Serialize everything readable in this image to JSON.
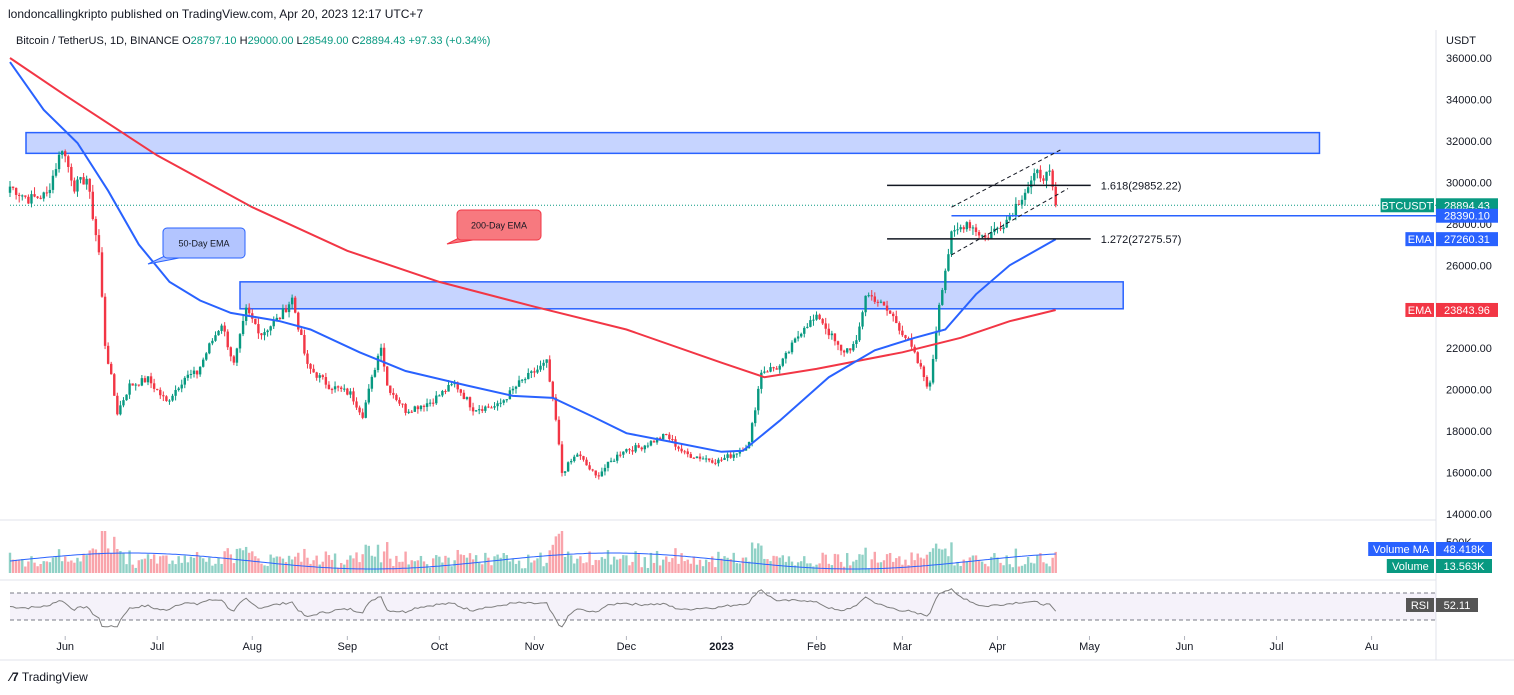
{
  "header": {
    "publisher": "londoncallingkripto published on TradingView.com, Apr 20, 2023 12:17 UTC+7"
  },
  "legend": {
    "symbol": "Bitcoin / TetherUS, 1D, BINANCE",
    "o_label": "O",
    "o": "28797.10",
    "h_label": "H",
    "h": "29000.00",
    "l_label": "L",
    "l": "28549.00",
    "c_label": "C",
    "c": "28894.43",
    "change": "+97.33 (+0.34%)"
  },
  "footer": {
    "logo": "TradingView"
  },
  "colors": {
    "up": "#089981",
    "down": "#f23645",
    "ema50": "#2962ff",
    "ema200": "#f23645",
    "zone_fill": "#b3c5ff",
    "zone_stroke": "#2962ff",
    "badge_blue": "#2962ff",
    "badge_green": "#089981",
    "rsi_line": "#7e7e7e"
  },
  "chart_data": {
    "type": "candlestick",
    "symbol": "BTCUSDT",
    "currency": "USDT",
    "y_axis": {
      "label": "USDT",
      "range": [
        13400,
        37000
      ],
      "ticks": [
        {
          "v": 14000,
          "t": "14000.00"
        },
        {
          "v": 16000,
          "t": "16000.00"
        },
        {
          "v": 18000,
          "t": "18000.00"
        },
        {
          "v": 20000,
          "t": "20000.00"
        },
        {
          "v": 22000,
          "t": "22000.00"
        },
        {
          "v": 24000,
          "t": "24000.00"
        },
        {
          "v": 26000,
          "t": "26000.00"
        },
        {
          "v": 28000,
          "t": "28000.00"
        },
        {
          "v": 30000,
          "t": "30000.00"
        },
        {
          "v": 32000,
          "t": "32000.00"
        },
        {
          "v": 34000,
          "t": "34000.00"
        },
        {
          "v": 36000,
          "t": "36000.00"
        }
      ]
    },
    "x_axis": {
      "range": [
        "2022-05-14",
        "2023-08-22"
      ],
      "ticks": [
        {
          "d": "2022-06-01",
          "t": "Jun"
        },
        {
          "d": "2022-07-01",
          "t": "Jul"
        },
        {
          "d": "2022-08-01",
          "t": "Aug"
        },
        {
          "d": "2022-09-01",
          "t": "Sep"
        },
        {
          "d": "2022-10-01",
          "t": "Oct"
        },
        {
          "d": "2022-11-01",
          "t": "Nov"
        },
        {
          "d": "2022-12-01",
          "t": "Dec"
        },
        {
          "d": "2023-01-01",
          "t": "2023"
        },
        {
          "d": "2023-02-01",
          "t": "Feb"
        },
        {
          "d": "2023-03-01",
          "t": "Mar"
        },
        {
          "d": "2023-04-01",
          "t": "Apr"
        },
        {
          "d": "2023-05-01",
          "t": "May"
        },
        {
          "d": "2023-06-01",
          "t": "Jun"
        },
        {
          "d": "2023-07-01",
          "t": "Jul"
        },
        {
          "d": "2023-08-01",
          "t": "Au"
        }
      ]
    },
    "close_path": [
      [
        "2022-05-14",
        29800
      ],
      [
        "2022-05-20",
        29200
      ],
      [
        "2022-05-26",
        29400
      ],
      [
        "2022-05-31",
        31700
      ],
      [
        "2022-06-04",
        29800
      ],
      [
        "2022-06-08",
        30200
      ],
      [
        "2022-06-12",
        26600
      ],
      [
        "2022-06-14",
        22200
      ],
      [
        "2022-06-18",
        18900
      ],
      [
        "2022-06-22",
        20200
      ],
      [
        "2022-06-28",
        20500
      ],
      [
        "2022-07-04",
        19400
      ],
      [
        "2022-07-10",
        20600
      ],
      [
        "2022-07-14",
        20800
      ],
      [
        "2022-07-18",
        22100
      ],
      [
        "2022-07-22",
        23200
      ],
      [
        "2022-07-26",
        21200
      ],
      [
        "2022-07-30",
        23800
      ],
      [
        "2022-08-04",
        22700
      ],
      [
        "2022-08-10",
        23500
      ],
      [
        "2022-08-14",
        24400
      ],
      [
        "2022-08-19",
        21100
      ],
      [
        "2022-08-26",
        20200
      ],
      [
        "2022-09-02",
        19800
      ],
      [
        "2022-09-06",
        18800
      ],
      [
        "2022-09-12",
        22200
      ],
      [
        "2022-09-14",
        20200
      ],
      [
        "2022-09-20",
        19000
      ],
      [
        "2022-09-28",
        19400
      ],
      [
        "2022-10-06",
        20300
      ],
      [
        "2022-10-12",
        19100
      ],
      [
        "2022-10-20",
        19200
      ],
      [
        "2022-10-27",
        20300
      ],
      [
        "2022-11-05",
        21300
      ],
      [
        "2022-11-08",
        18500
      ],
      [
        "2022-11-10",
        16000
      ],
      [
        "2022-11-15",
        16900
      ],
      [
        "2022-11-21",
        15800
      ],
      [
        "2022-11-30",
        17100
      ],
      [
        "2022-12-05",
        17200
      ],
      [
        "2022-12-14",
        17800
      ],
      [
        "2022-12-20",
        16900
      ],
      [
        "2022-12-31",
        16550
      ],
      [
        "2023-01-05",
        16900
      ],
      [
        "2023-01-10",
        17400
      ],
      [
        "2023-01-14",
        20900
      ],
      [
        "2023-01-20",
        21100
      ],
      [
        "2023-01-28",
        23100
      ],
      [
        "2023-02-02",
        23500
      ],
      [
        "2023-02-09",
        21800
      ],
      [
        "2023-02-14",
        22200
      ],
      [
        "2023-02-17",
        24600
      ],
      [
        "2023-02-20",
        24400
      ],
      [
        "2023-02-26",
        23500
      ],
      [
        "2023-03-03",
        22300
      ],
      [
        "2023-03-09",
        20300
      ],
      [
        "2023-03-10",
        20200
      ],
      [
        "2023-03-13",
        24200
      ],
      [
        "2023-03-17",
        27400
      ],
      [
        "2023-03-22",
        28100
      ],
      [
        "2023-03-28",
        27300
      ],
      [
        "2023-04-04",
        28200
      ],
      [
        "2023-04-10",
        29600
      ],
      [
        "2023-04-14",
        30400
      ],
      [
        "2023-04-18",
        30300
      ],
      [
        "2023-04-20",
        28894
      ]
    ],
    "ema50": [
      [
        "2022-05-14",
        35800
      ],
      [
        "2022-05-25",
        33500
      ],
      [
        "2022-06-05",
        31900
      ],
      [
        "2022-06-15",
        29600
      ],
      [
        "2022-06-25",
        27000
      ],
      [
        "2022-07-05",
        25200
      ],
      [
        "2022-07-15",
        24300
      ],
      [
        "2022-07-25",
        23700
      ],
      [
        "2022-08-10",
        23300
      ],
      [
        "2022-08-20",
        22900
      ],
      [
        "2022-09-05",
        21800
      ],
      [
        "2022-09-20",
        20900
      ],
      [
        "2022-10-10",
        20200
      ],
      [
        "2022-10-25",
        19700
      ],
      [
        "2022-11-07",
        19600
      ],
      [
        "2022-11-20",
        18700
      ],
      [
        "2022-12-01",
        17900
      ],
      [
        "2022-12-15",
        17500
      ],
      [
        "2023-01-01",
        17000
      ],
      [
        "2023-01-08",
        17050
      ],
      [
        "2023-01-20",
        18500
      ],
      [
        "2023-02-05",
        20600
      ],
      [
        "2023-02-20",
        21900
      ],
      [
        "2023-03-05",
        22500
      ],
      [
        "2023-03-15",
        22900
      ],
      [
        "2023-03-25",
        24600
      ],
      [
        "2023-04-05",
        26000
      ],
      [
        "2023-04-20",
        27260
      ]
    ],
    "ema200": [
      [
        "2022-05-14",
        36000
      ],
      [
        "2022-06-01",
        34200
      ],
      [
        "2022-07-01",
        31300
      ],
      [
        "2022-08-01",
        28800
      ],
      [
        "2022-09-01",
        26700
      ],
      [
        "2022-10-01",
        25200
      ],
      [
        "2022-11-01",
        24000
      ],
      [
        "2022-12-01",
        22900
      ],
      [
        "2023-01-01",
        21300
      ],
      [
        "2023-01-15",
        20600
      ],
      [
        "2023-02-01",
        21000
      ],
      [
        "2023-03-01",
        21800
      ],
      [
        "2023-03-20",
        22500
      ],
      [
        "2023-04-05",
        23300
      ],
      [
        "2023-04-20",
        23844
      ]
    ],
    "zones": [
      {
        "from": "2022-05-14",
        "to": "2023-07-15",
        "low": 31400,
        "high": 32400
      },
      {
        "from": "2022-07-28",
        "to": "2023-05-12",
        "low": 23900,
        "high": 25200
      }
    ],
    "fib_levels": [
      {
        "label": "1.618(29852.22)",
        "value": 29852.22,
        "from": "2023-02-24",
        "to": "2023-04-20"
      },
      {
        "label": "1.272(27275.57)",
        "value": 27275.57,
        "from": "2023-02-24",
        "to": "2023-04-20"
      }
    ],
    "support_line": {
      "value": 28390.1,
      "from": "2023-03-17"
    },
    "channel": [
      {
        "from": [
          "2023-03-17",
          28800
        ],
        "to": [
          "2023-04-22",
          31600
        ]
      },
      {
        "from": [
          "2023-03-17",
          26500
        ],
        "to": [
          "2023-04-24",
          29700
        ]
      }
    ],
    "callouts": [
      {
        "text": "50-Day EMA",
        "at": [
          "2022-06-30",
          25000
        ]
      },
      {
        "text": "200-Day EMA",
        "at": [
          "2022-10-06",
          26800
        ]
      }
    ],
    "last_price_value": 28894.43,
    "price_badges": [
      {
        "text": "BTCUSDT",
        "value": 28894.43,
        "value_text": "28894.43",
        "color": "#089981"
      },
      {
        "text": "",
        "value": 28390.1,
        "value_text": "28390.10",
        "color": "#2962ff"
      },
      {
        "text": "EMA",
        "value": 27260.31,
        "value_text": "27260.31",
        "color": "#2962ff"
      },
      {
        "text": "EMA",
        "value": 23843.96,
        "value_text": "23843.96",
        "color": "#f23645"
      }
    ],
    "volume": {
      "y_tick": "500K",
      "badges": [
        {
          "text": "Volume MA",
          "value_text": "48.418K",
          "color": "#2962ff"
        },
        {
          "text": "Volume",
          "value_text": "13.563K",
          "color": "#089981"
        }
      ]
    },
    "rsi": {
      "badge": {
        "text": "RSI",
        "value_text": "52.11",
        "color": "#555555"
      },
      "upper": 70,
      "lower": 30
    }
  }
}
